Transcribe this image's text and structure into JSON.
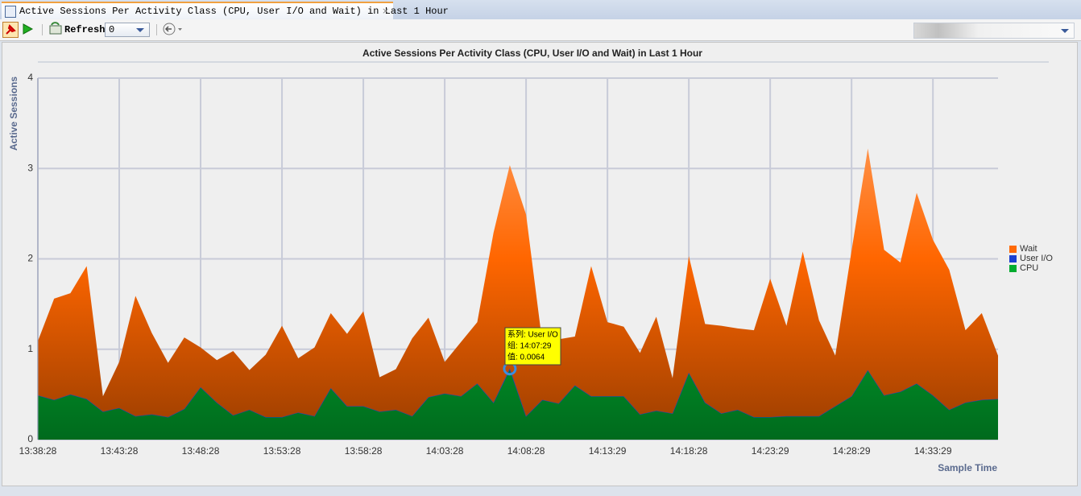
{
  "tab": {
    "title": "Active Sessions Per Activity Class (CPU, User I/O and Wait) in Last 1 Hour",
    "close": "×"
  },
  "toolbar": {
    "refresh_label": "Refresh:",
    "refresh_value": "0"
  },
  "tooltip": {
    "lines": [
      "系列: User I/O",
      "组: 14:07:29",
      "值: 0.0064"
    ]
  },
  "chart_data": {
    "type": "stacked-area",
    "title": "Active Sessions Per Activity Class (CPU, User I/O and Wait) in Last 1 Hour",
    "y_label": "Active Sessions",
    "x_label": "Sample Time",
    "categories": [
      "13:38:28",
      null,
      null,
      null,
      null,
      "13:43:28",
      null,
      null,
      null,
      null,
      "13:48:28",
      null,
      null,
      null,
      null,
      "13:53:28",
      null,
      null,
      null,
      null,
      "13:58:28",
      null,
      null,
      null,
      null,
      "14:03:28",
      null,
      null,
      null,
      null,
      "14:08:28",
      null,
      null,
      null,
      null,
      "14:13:29",
      null,
      null,
      null,
      null,
      "14:18:28",
      null,
      null,
      null,
      null,
      "14:23:29",
      null,
      null,
      null,
      null,
      "14:28:29",
      null,
      null,
      null,
      null,
      "14:33:29",
      null,
      null,
      null,
      null
    ],
    "series": [
      {
        "name": "CPU",
        "color": "#00b030",
        "values": [
          0.49,
          0.44,
          0.5,
          0.45,
          0.31,
          0.35,
          0.26,
          0.28,
          0.25,
          0.34,
          0.58,
          0.41,
          0.27,
          0.33,
          0.25,
          0.25,
          0.3,
          0.26,
          0.57,
          0.37,
          0.37,
          0.31,
          0.33,
          0.26,
          0.47,
          0.51,
          0.48,
          0.62,
          0.41,
          0.78,
          0.26,
          0.44,
          0.4,
          0.6,
          0.48,
          0.48,
          0.48,
          0.28,
          0.32,
          0.29,
          0.74,
          0.41,
          0.29,
          0.33,
          0.25,
          0.25,
          0.26,
          0.26,
          0.26,
          0.37,
          0.48,
          0.77,
          0.49,
          0.53,
          0.62,
          0.49,
          0.33,
          0.41,
          0.44,
          0.45
        ]
      },
      {
        "name": "User I/O",
        "color": "#1a3fd0",
        "values": [
          0,
          0,
          0,
          0,
          0,
          0,
          0,
          0,
          0,
          0,
          0,
          0,
          0,
          0,
          0,
          0,
          0,
          0,
          0,
          0,
          0,
          0,
          0,
          0,
          0,
          0,
          0,
          0,
          0,
          0.0064,
          0,
          0,
          0,
          0,
          0,
          0,
          0,
          0,
          0,
          0,
          0,
          0,
          0,
          0,
          0,
          0,
          0,
          0,
          0,
          0,
          0,
          0,
          0,
          0,
          0,
          0,
          0,
          0,
          0,
          0
        ]
      },
      {
        "name": "Wait",
        "color": "#ff6600",
        "values": [
          0.6,
          1.12,
          1.12,
          1.47,
          0.17,
          0.51,
          1.33,
          0.9,
          0.6,
          0.79,
          0.44,
          0.47,
          0.71,
          0.44,
          0.69,
          1.01,
          0.6,
          0.76,
          0.83,
          0.8,
          1.05,
          0.38,
          0.45,
          0.86,
          0.88,
          0.35,
          0.6,
          0.68,
          1.88,
          2.25,
          2.23,
          0.63,
          0.71,
          0.54,
          1.44,
          0.82,
          0.77,
          0.68,
          1.04,
          0.39,
          1.29,
          0.87,
          0.97,
          0.9,
          0.96,
          1.53,
          1.0,
          1.82,
          1.06,
          0.56,
          1.61,
          2.45,
          1.61,
          1.43,
          2.11,
          1.72,
          1.55,
          0.8,
          0.96,
          0.48
        ]
      }
    ],
    "ylim": [
      0,
      4
    ],
    "yticks": [
      0,
      1,
      2,
      3,
      4
    ],
    "grid": true,
    "legend": "right"
  }
}
